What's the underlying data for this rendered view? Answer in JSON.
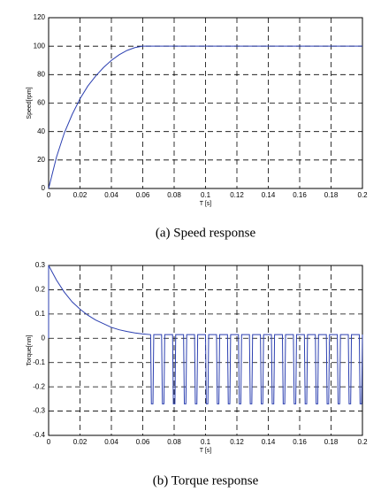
{
  "chart_data": [
    {
      "type": "line",
      "caption": "(a)  Speed response",
      "x_label": "T [s]",
      "y_label": "Speed[rpm]",
      "x": [
        0,
        0.005,
        0.01,
        0.015,
        0.02,
        0.025,
        0.03,
        0.035,
        0.04,
        0.045,
        0.05,
        0.055,
        0.06,
        0.08,
        0.1,
        0.12,
        0.14,
        0.16,
        0.18,
        0.2
      ],
      "series": [
        {
          "color": "#2b3fb0",
          "values": [
            0,
            22,
            39,
            52,
            63,
            72,
            79,
            85,
            90,
            94,
            97,
            99,
            100,
            100,
            100,
            100,
            100,
            100,
            100,
            100
          ]
        }
      ],
      "xlim": [
        0,
        0.2
      ],
      "xticks": [
        0,
        0.02,
        0.04,
        0.06,
        0.08,
        0.1,
        0.12,
        0.14,
        0.16,
        0.18,
        0.2
      ],
      "ylim": [
        0,
        120
      ],
      "yticks": [
        0,
        20,
        40,
        60,
        80,
        100,
        120
      ],
      "grid": true
    },
    {
      "type": "line",
      "caption": "(b)  Torque response",
      "x_label": "T [s]",
      "y_label": "Torque[nm]",
      "x": [
        0,
        0,
        0.005,
        0.01,
        0.015,
        0.02,
        0.025,
        0.03,
        0.035,
        0.04,
        0.045,
        0.05,
        0.055,
        0.06,
        0.065,
        0.0655,
        0.0665,
        0.067,
        0.072,
        0.0725,
        0.0735,
        0.074,
        0.079,
        0.0795,
        0.0805,
        0.081,
        0.086,
        0.0865,
        0.0875,
        0.088,
        0.093,
        0.0935,
        0.0945,
        0.095,
        0.1,
        0.1005,
        0.1015,
        0.102,
        0.107,
        0.1075,
        0.1085,
        0.109,
        0.114,
        0.1145,
        0.1155,
        0.116,
        0.121,
        0.1215,
        0.1225,
        0.123,
        0.128,
        0.1285,
        0.1295,
        0.13,
        0.135,
        0.1355,
        0.1365,
        0.137,
        0.142,
        0.1425,
        0.1435,
        0.144,
        0.149,
        0.1495,
        0.1505,
        0.151,
        0.156,
        0.1565,
        0.1575,
        0.158,
        0.163,
        0.1635,
        0.1645,
        0.165,
        0.17,
        0.1705,
        0.1715,
        0.172,
        0.177,
        0.1775,
        0.1785,
        0.179,
        0.184,
        0.1845,
        0.1855,
        0.186,
        0.191,
        0.1915,
        0.1925,
        0.193,
        0.198,
        0.1985,
        0.1995,
        0.2
      ],
      "series": [
        {
          "color": "#2b3fb0",
          "values": [
            0,
            0.3,
            0.24,
            0.19,
            0.15,
            0.12,
            0.095,
            0.075,
            0.06,
            0.045,
            0.035,
            0.028,
            0.022,
            0.018,
            0.015,
            -0.27,
            -0.27,
            0.015,
            0.015,
            -0.27,
            -0.27,
            0.015,
            0.015,
            -0.27,
            -0.27,
            0.015,
            0.015,
            -0.27,
            -0.27,
            0.015,
            0.015,
            -0.27,
            -0.27,
            0.015,
            0.015,
            -0.27,
            -0.27,
            0.015,
            0.015,
            -0.27,
            -0.27,
            0.015,
            0.015,
            -0.27,
            -0.27,
            0.015,
            0.015,
            -0.27,
            -0.27,
            0.015,
            0.015,
            -0.27,
            -0.27,
            0.015,
            0.015,
            -0.27,
            -0.27,
            0.015,
            0.015,
            -0.27,
            -0.27,
            0.015,
            0.015,
            -0.27,
            -0.27,
            0.015,
            0.015,
            -0.27,
            -0.27,
            0.015,
            0.015,
            -0.27,
            -0.27,
            0.015,
            0.015,
            -0.27,
            -0.27,
            0.015,
            0.015,
            -0.27,
            -0.27,
            0.015,
            0.015,
            -0.27,
            -0.27,
            0.015,
            0.015,
            -0.27,
            -0.27,
            0.015,
            0.015,
            -0.27,
            -0.27,
            0.015
          ]
        }
      ],
      "xlim": [
        0,
        0.2
      ],
      "xticks": [
        0,
        0.02,
        0.04,
        0.06,
        0.08,
        0.1,
        0.12,
        0.14,
        0.16,
        0.18,
        0.2
      ],
      "ylim": [
        -0.4,
        0.3
      ],
      "yticks": [
        -0.4,
        -0.3,
        -0.2,
        -0.1,
        0,
        0.1,
        0.2,
        0.3
      ],
      "grid": true
    }
  ]
}
